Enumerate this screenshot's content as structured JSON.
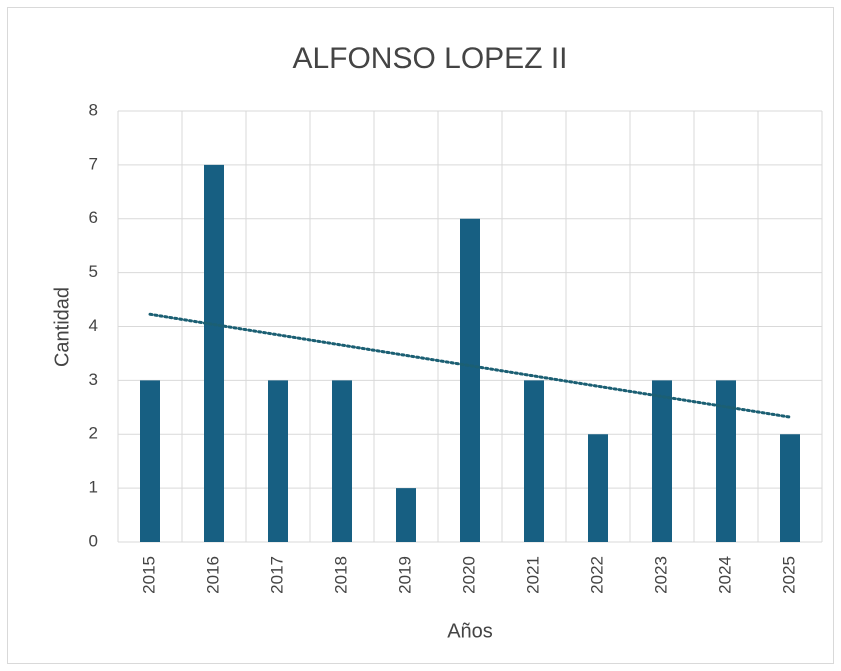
{
  "chart_data": {
    "type": "bar",
    "title": "ALFONSO LOPEZ II",
    "x_label": "Años",
    "y_label": "Cantidad",
    "categories": [
      "2015",
      "2016",
      "2017",
      "2018",
      "2019",
      "2020",
      "2021",
      "2022",
      "2023",
      "2024",
      "2025"
    ],
    "values": [
      3,
      7,
      3,
      3,
      1,
      6,
      3,
      2,
      3,
      3,
      2
    ],
    "color": "#175f82",
    "ylim": [
      0,
      8
    ],
    "yticks": [
      0,
      1,
      2,
      3,
      4,
      5,
      6,
      7,
      8
    ],
    "grid": true,
    "trendline": "linear",
    "trendline_color": "#1b5f73"
  }
}
